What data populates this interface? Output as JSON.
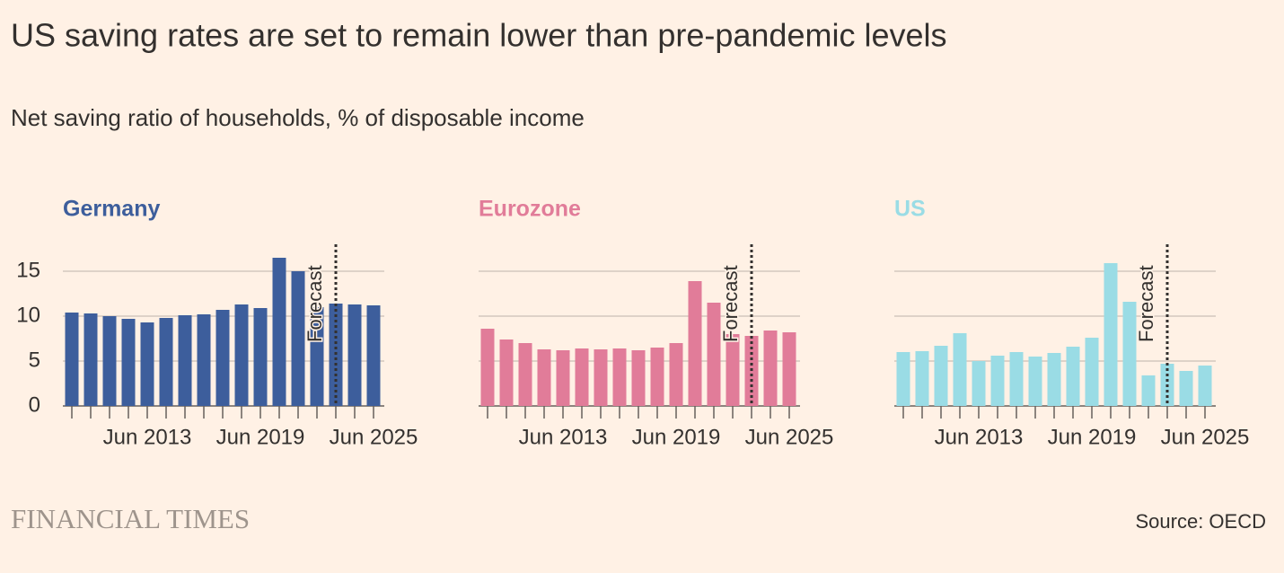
{
  "title": "US saving rates are set to remain lower than pre-pandemic levels",
  "subtitle": "Net saving ratio of households, % of disposable income",
  "brand": "FINANCIAL TIMES",
  "source": "Source: OECD",
  "chart_data": [
    {
      "type": "bar",
      "title": "Germany",
      "color": "#3d5e9c",
      "categories": [
        null,
        null,
        null,
        null,
        "Jun 2013",
        null,
        null,
        null,
        null,
        null,
        "Jun 2019",
        null,
        null,
        null,
        null,
        null,
        "Jun 2025"
      ],
      "values": [
        10.4,
        10.3,
        10.0,
        9.7,
        9.3,
        9.8,
        10.1,
        10.2,
        10.7,
        11.3,
        10.9,
        16.5,
        15.0,
        11.0,
        11.4,
        11.3,
        11.2
      ],
      "ylim": [
        0,
        18
      ],
      "yticks": [
        0,
        5,
        10,
        15
      ],
      "grid": true,
      "annotation": "Forecast",
      "forecast_from": 14
    },
    {
      "type": "bar",
      "title": "Eurozone",
      "color": "#e17c99",
      "categories": [
        null,
        null,
        null,
        null,
        "Jun 2013",
        null,
        null,
        null,
        null,
        null,
        "Jun 2019",
        null,
        null,
        null,
        null,
        null,
        "Jun 2025"
      ],
      "values": [
        8.6,
        7.4,
        7.0,
        6.3,
        6.2,
        6.4,
        6.3,
        6.4,
        6.2,
        6.5,
        7.0,
        13.9,
        11.5,
        8.0,
        7.8,
        8.4,
        8.2
      ],
      "ylim": [
        0,
        18
      ],
      "yticks": [
        0,
        5,
        10,
        15
      ],
      "grid": true,
      "annotation": "Forecast",
      "forecast_from": 14
    },
    {
      "type": "bar",
      "title": "US",
      "color": "#9adce5",
      "categories": [
        null,
        null,
        null,
        null,
        "Jun 2013",
        null,
        null,
        null,
        null,
        null,
        "Jun 2019",
        null,
        null,
        null,
        null,
        null,
        "Jun 2025"
      ],
      "values": [
        6.0,
        6.1,
        6.7,
        8.1,
        5.0,
        5.6,
        6.0,
        5.5,
        5.9,
        6.6,
        7.6,
        15.9,
        11.6,
        3.4,
        4.7,
        3.9,
        4.5
      ],
      "ylim": [
        0,
        18
      ],
      "yticks": [
        0,
        5,
        10,
        15
      ],
      "grid": true,
      "annotation": "Forecast",
      "forecast_from": 14
    }
  ]
}
